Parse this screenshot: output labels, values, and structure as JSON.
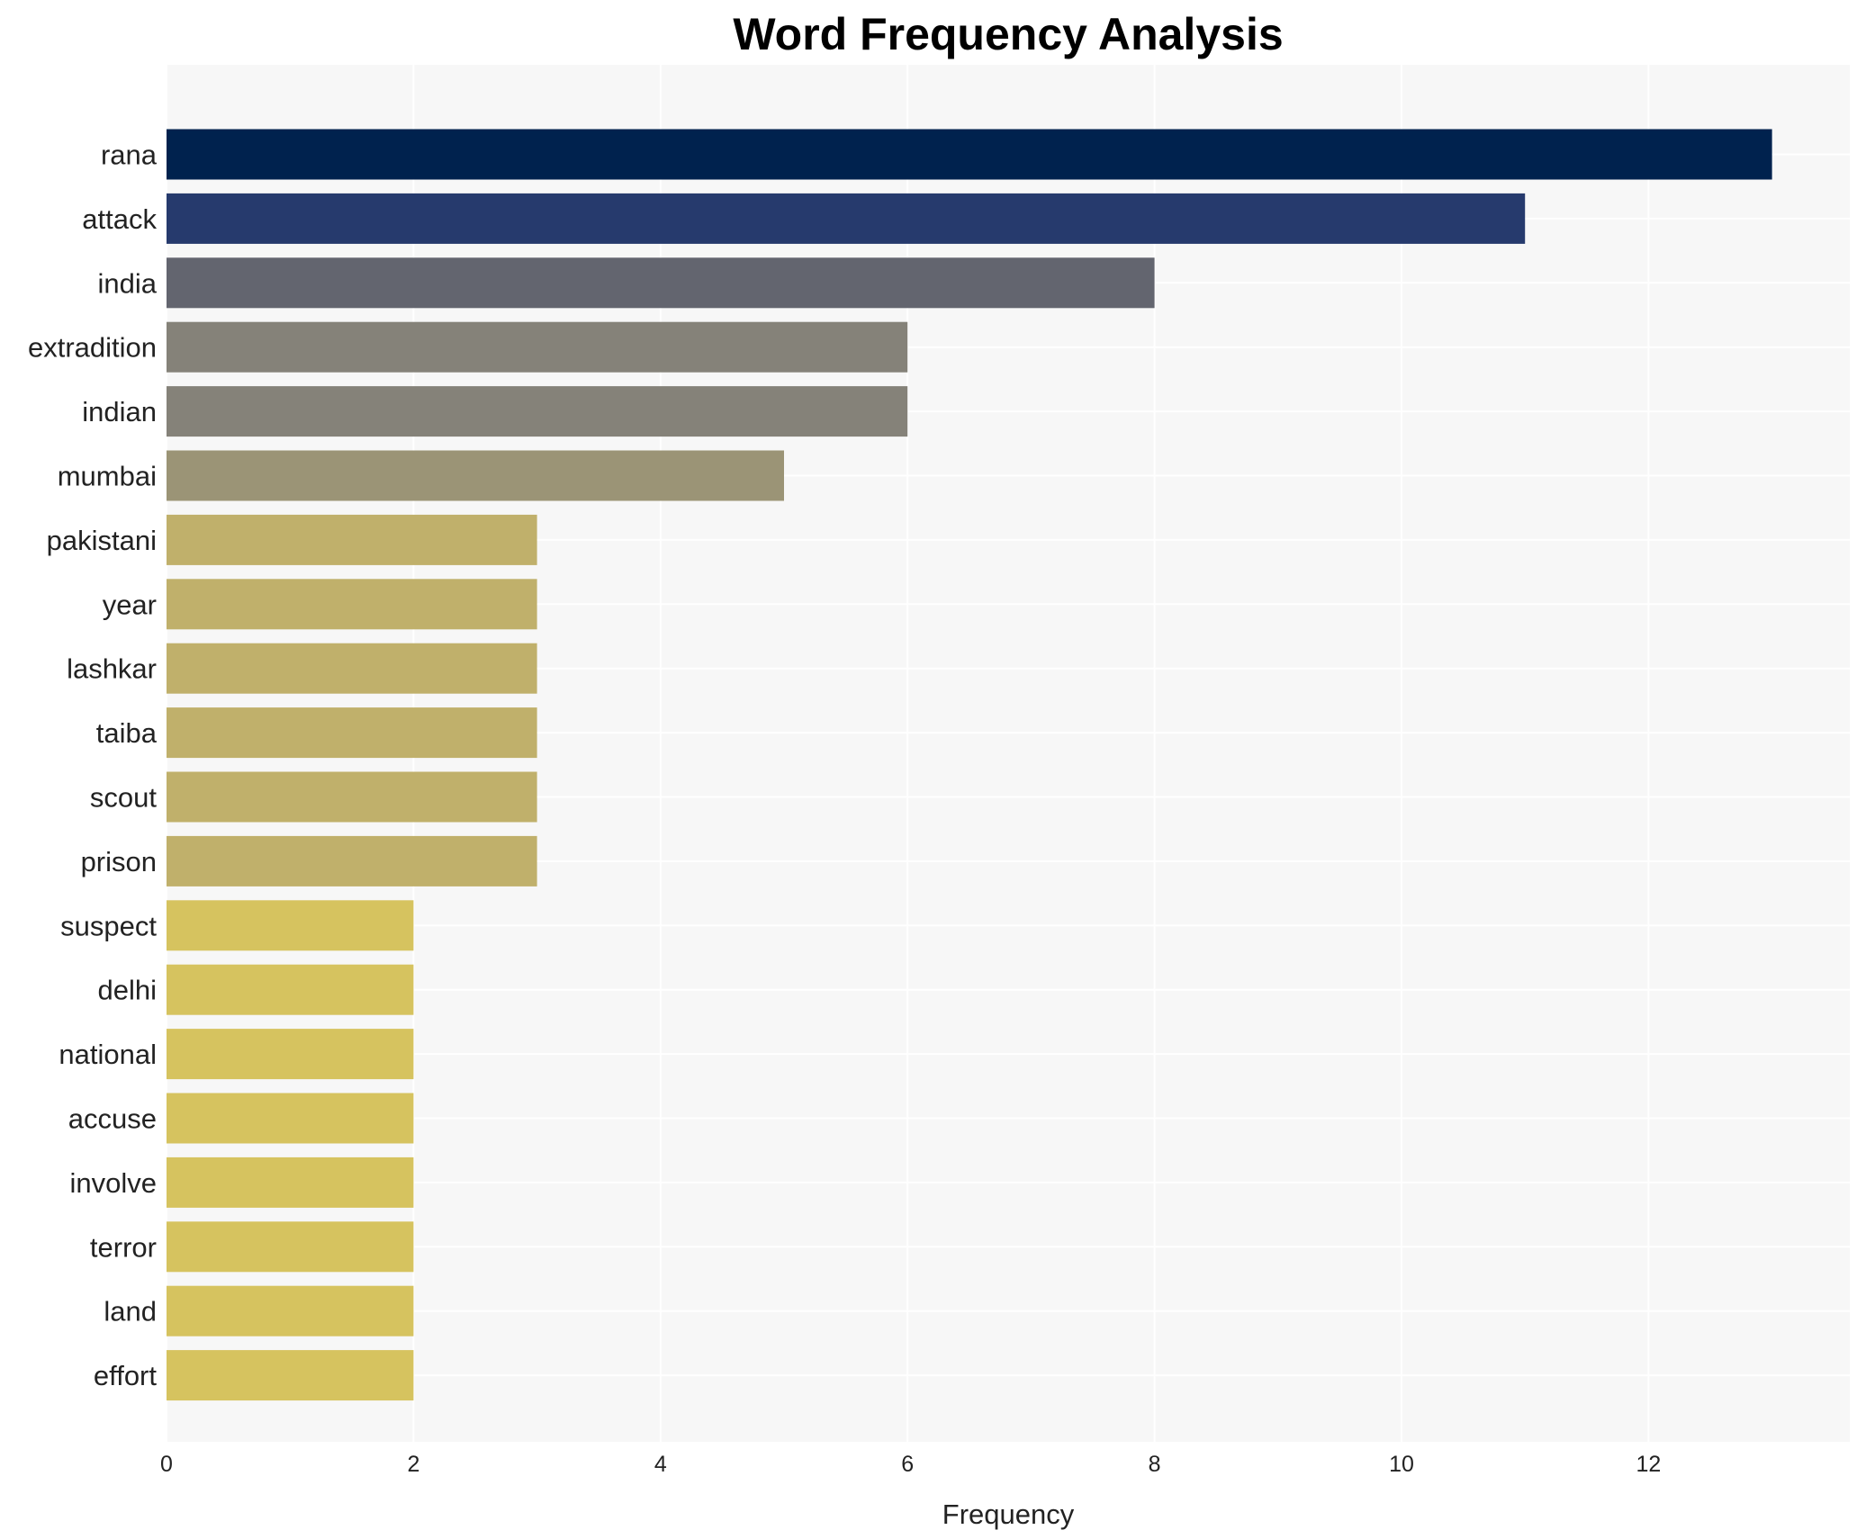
{
  "chart_data": {
    "type": "bar",
    "orientation": "horizontal",
    "title": "Word Frequency Analysis",
    "xlabel": "Frequency",
    "ylabel": "",
    "xlim": [
      0,
      13.65
    ],
    "xticks": [
      0,
      2,
      4,
      6,
      8,
      10,
      12
    ],
    "grid": true,
    "categories": [
      "rana",
      "attack",
      "india",
      "extradition",
      "indian",
      "mumbai",
      "pakistani",
      "year",
      "lashkar",
      "taiba",
      "scout",
      "prison",
      "suspect",
      "delhi",
      "national",
      "accuse",
      "involve",
      "terror",
      "land",
      "effort"
    ],
    "values": [
      13,
      11,
      8,
      6,
      6,
      5,
      3,
      3,
      3,
      3,
      3,
      3,
      2,
      2,
      2,
      2,
      2,
      2,
      2,
      2
    ],
    "colors": [
      "#00224e",
      "#263a6d",
      "#63656f",
      "#858279",
      "#858279",
      "#9b9476",
      "#c0b06b",
      "#c0b06b",
      "#c0b06b",
      "#c0b06b",
      "#c0b06b",
      "#c0b06b",
      "#d6c35f",
      "#d6c35f",
      "#d6c35f",
      "#d6c35f",
      "#d6c35f",
      "#d6c35f",
      "#d6c35f",
      "#d6c35f"
    ],
    "plot_background": "#f7f7f7",
    "grid_color": "#ffffff"
  }
}
